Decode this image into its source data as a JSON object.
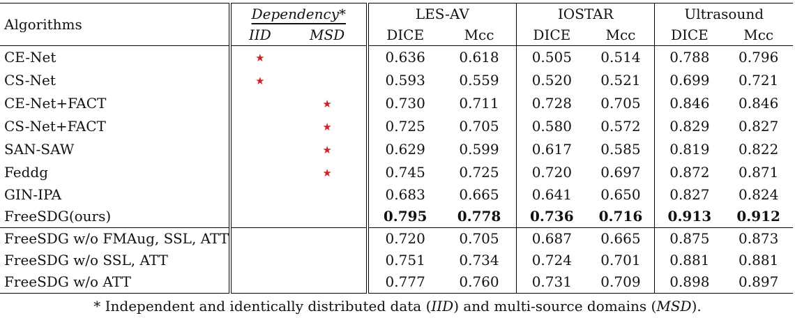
{
  "header": {
    "algorithms": "Algorithms",
    "dependency": "Dependency*",
    "iid": "IID",
    "msd": "MSD",
    "datasets": [
      "LES-AV",
      "IOSTAR",
      "Ultrasound"
    ],
    "metrics": [
      "DICE",
      "Mcc",
      "DICE",
      "Mcc",
      "DICE",
      "Mcc"
    ]
  },
  "star_symbol": "★",
  "rows": [
    {
      "name": "CE-Net",
      "iid": true,
      "msd": false,
      "values": [
        "0.636",
        "0.618",
        "0.505",
        "0.514",
        "0.788",
        "0.796"
      ]
    },
    {
      "name": "CS-Net",
      "iid": true,
      "msd": false,
      "values": [
        "0.593",
        "0.559",
        "0.520",
        "0.521",
        "0.699",
        "0.721"
      ]
    },
    {
      "name": "CE-Net+FACT",
      "iid": false,
      "msd": true,
      "values": [
        "0.730",
        "0.711",
        "0.728",
        "0.705",
        "0.846",
        "0.846"
      ]
    },
    {
      "name": "CS-Net+FACT",
      "iid": false,
      "msd": true,
      "values": [
        "0.725",
        "0.705",
        "0.580",
        "0.572",
        "0.829",
        "0.827"
      ]
    },
    {
      "name": "SAN-SAW",
      "iid": false,
      "msd": true,
      "values": [
        "0.629",
        "0.599",
        "0.617",
        "0.585",
        "0.819",
        "0.822"
      ]
    },
    {
      "name": "Feddg",
      "iid": false,
      "msd": true,
      "values": [
        "0.745",
        "0.725",
        "0.720",
        "0.697",
        "0.872",
        "0.871"
      ]
    },
    {
      "name": "GIN-IPA",
      "iid": false,
      "msd": false,
      "values": [
        "0.683",
        "0.665",
        "0.641",
        "0.650",
        "0.827",
        "0.824"
      ]
    },
    {
      "name": "FreeSDG(ours)",
      "iid": false,
      "msd": false,
      "bold": true,
      "values": [
        "0.795",
        "0.778",
        "0.736",
        "0.716",
        "0.913",
        "0.912"
      ]
    }
  ],
  "ablation_rows": [
    {
      "name": "FreeSDG w/o FMAug, SSL, ATT",
      "values": [
        "0.720",
        "0.705",
        "0.687",
        "0.665",
        "0.875",
        "0.873"
      ]
    },
    {
      "name": "FreeSDG w/o SSL, ATT",
      "values": [
        "0.751",
        "0.734",
        "0.724",
        "0.701",
        "0.881",
        "0.881"
      ]
    },
    {
      "name": "FreeSDG w/o ATT",
      "values": [
        "0.777",
        "0.760",
        "0.731",
        "0.709",
        "0.898",
        "0.897"
      ]
    }
  ],
  "footnote": {
    "prefix": "* Independent and identically distributed data (",
    "iid": "IID",
    "middle": ") and multi-source domains (",
    "msd": "MSD",
    "suffix": ")."
  }
}
